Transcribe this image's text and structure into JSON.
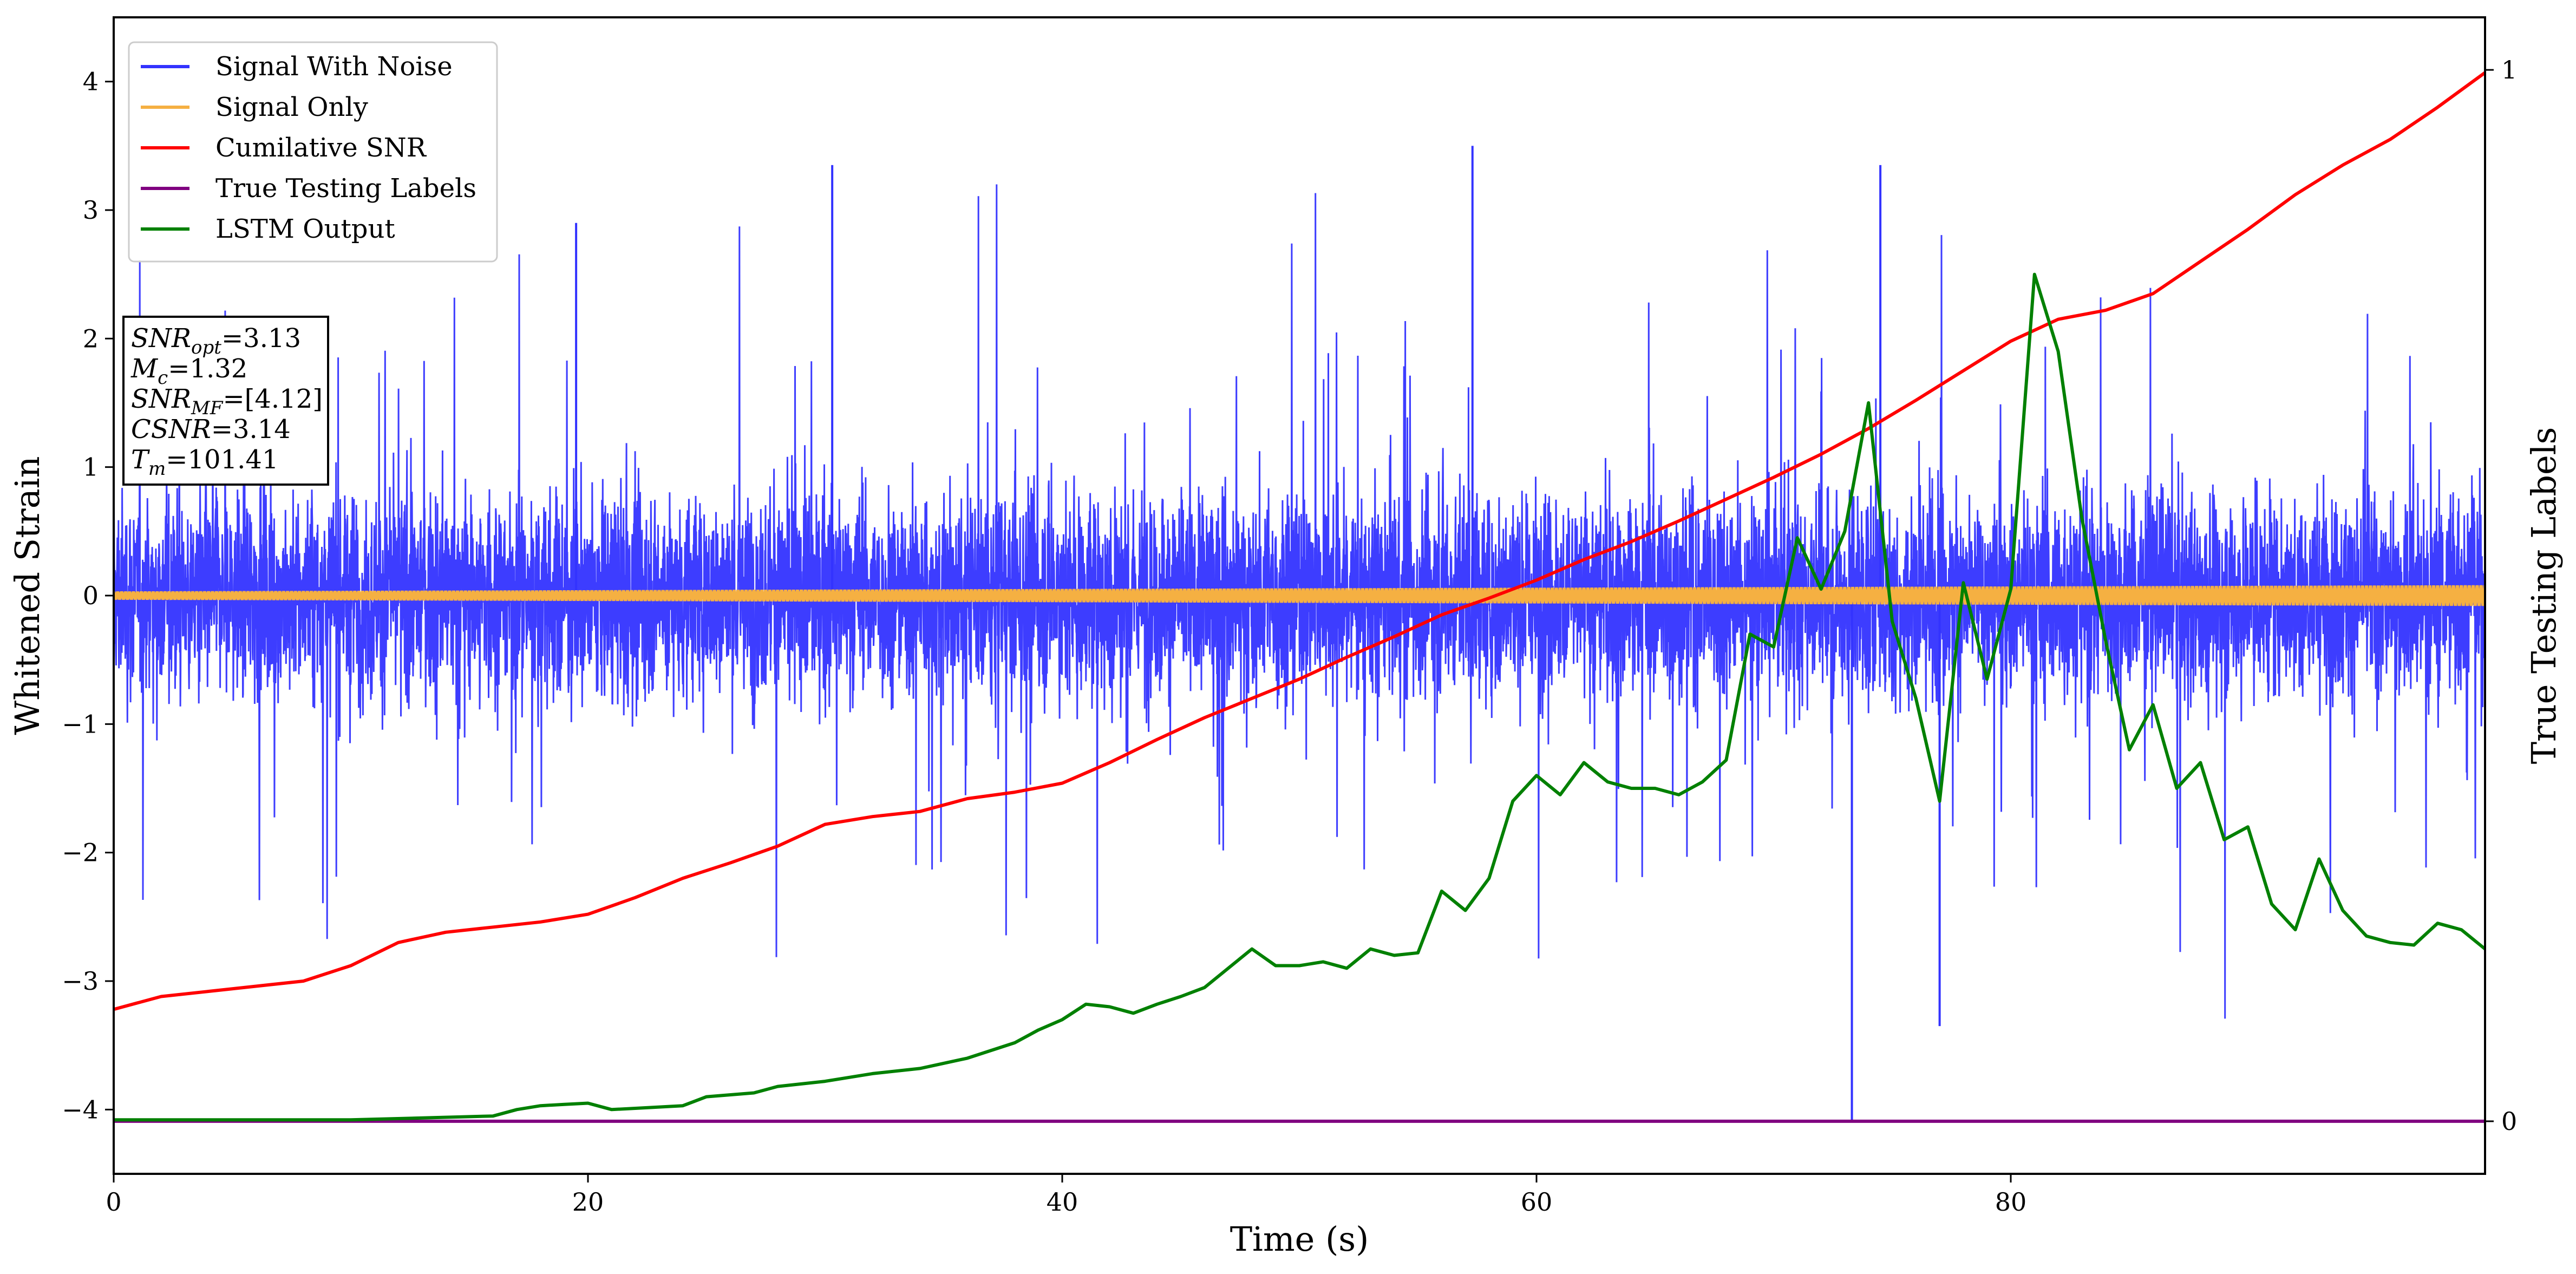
{
  "chart_data": {
    "type": "line",
    "xlabel": "Time (s)",
    "ylabel": "Whitened Strain",
    "y2label": "True Testing Labels",
    "xlim": [
      0,
      100
    ],
    "ylim": [
      -4.5,
      4.5
    ],
    "y2lim": [
      -0.05,
      1.05
    ],
    "xticks": [
      0,
      20,
      40,
      60,
      80
    ],
    "yticks": [
      -4,
      -3,
      -2,
      -1,
      0,
      1,
      2,
      3,
      4
    ],
    "y2ticks": [
      0,
      1
    ],
    "legend": {
      "placement": "top-left",
      "entries": [
        {
          "label": "Signal With Noise",
          "color": "#3333ff"
        },
        {
          "label": "Signal Only",
          "color": "#f5b042"
        },
        {
          "label": "Cumilative SNR",
          "color": "#ff0000"
        },
        {
          "label": "True Testing Labels",
          "color": "#800080"
        },
        {
          "label": "LSTM Output",
          "color": "#008000"
        }
      ]
    },
    "annotation": {
      "lines": [
        {
          "var": "SNR",
          "sub": "opt",
          "value": "=3.13"
        },
        {
          "var": "M",
          "sub": "c",
          "value": "=1.32"
        },
        {
          "var": "SNR",
          "sub": "MF",
          "value": "=[4.12]"
        },
        {
          "var": "CSNR",
          "sub": "",
          "value": "=3.14"
        },
        {
          "var": "T",
          "sub": "m",
          "value": "=101.41"
        }
      ]
    },
    "series": [
      {
        "name": "Signal With Noise",
        "color": "#3333ff",
        "axis": "left",
        "description_range": [
          -4.1,
          3.5
        ],
        "band_core": [
          -1.2,
          1.2
        ],
        "notable_peaks": [
          [
            19.5,
            2.9
          ],
          [
            30.3,
            3.35
          ],
          [
            57.3,
            3.5
          ],
          [
            74.5,
            3.35
          ],
          [
            73.3,
            -4.1
          ],
          [
            77.0,
            -3.35
          ]
        ]
      },
      {
        "name": "Signal Only",
        "color": "#f5b042",
        "axis": "left",
        "amplitude_start": 0.03,
        "amplitude_end": 0.08
      },
      {
        "name": "Cumilative SNR",
        "color": "#ff0000",
        "axis": "left",
        "x": [
          0,
          2,
          4,
          6,
          8,
          10,
          12,
          14,
          16,
          18,
          20,
          22,
          24,
          26,
          28,
          30,
          32,
          34,
          36,
          38,
          40,
          42,
          44,
          46,
          48,
          50,
          52,
          54,
          56,
          58,
          60,
          62,
          64,
          66,
          68,
          70,
          72,
          74,
          76,
          78,
          80,
          82,
          84,
          86,
          88,
          90,
          92,
          94,
          96,
          98,
          100
        ],
        "y": [
          -3.22,
          -3.12,
          -3.08,
          -3.04,
          -3.0,
          -2.88,
          -2.7,
          -2.62,
          -2.58,
          -2.54,
          -2.48,
          -2.35,
          -2.2,
          -2.08,
          -1.95,
          -1.78,
          -1.72,
          -1.68,
          -1.58,
          -1.53,
          -1.46,
          -1.3,
          -1.12,
          -0.95,
          -0.8,
          -0.65,
          -0.48,
          -0.32,
          -0.15,
          -0.02,
          0.12,
          0.28,
          0.42,
          0.58,
          0.75,
          0.92,
          1.1,
          1.3,
          1.52,
          1.75,
          1.98,
          2.15,
          2.22,
          2.35,
          2.6,
          2.85,
          3.12,
          3.35,
          3.55,
          3.8,
          4.07
        ]
      },
      {
        "name": "True Testing Labels",
        "color": "#800080",
        "axis": "right",
        "x": [
          0,
          100
        ],
        "y": [
          0,
          0
        ]
      },
      {
        "name": "LSTM Output",
        "color": "#008000",
        "axis": "left",
        "x": [
          0,
          10,
          16,
          17,
          18,
          19,
          20,
          21,
          22,
          24,
          25,
          27,
          28,
          30,
          32,
          34,
          36,
          38,
          39,
          40,
          41,
          42,
          43,
          44,
          45,
          46,
          47,
          48,
          49,
          50,
          51,
          52,
          53,
          54,
          55,
          56,
          57,
          58,
          59,
          60,
          61,
          62,
          63,
          64,
          65,
          66,
          67,
          68,
          69,
          70,
          71,
          72,
          73,
          74,
          75,
          76,
          77,
          78,
          79,
          80,
          81,
          82,
          83,
          84,
          85,
          86,
          87,
          88,
          89,
          90,
          91,
          92,
          93,
          94,
          95,
          96,
          97,
          98,
          99,
          100
        ],
        "y": [
          -4.08,
          -4.08,
          -4.05,
          -4.0,
          -3.97,
          -3.96,
          -3.95,
          -4.0,
          -3.99,
          -3.97,
          -3.9,
          -3.87,
          -3.82,
          -3.78,
          -3.72,
          -3.68,
          -3.6,
          -3.48,
          -3.38,
          -3.3,
          -3.18,
          -3.2,
          -3.25,
          -3.18,
          -3.12,
          -3.05,
          -2.9,
          -2.75,
          -2.88,
          -2.88,
          -2.85,
          -2.9,
          -2.75,
          -2.8,
          -2.78,
          -2.3,
          -2.45,
          -2.2,
          -1.6,
          -1.4,
          -1.55,
          -1.3,
          -1.45,
          -1.5,
          -1.5,
          -1.55,
          -1.45,
          -1.28,
          -0.3,
          -0.4,
          0.45,
          0.05,
          0.5,
          1.5,
          -0.2,
          -0.8,
          -1.6,
          0.1,
          -0.65,
          0.05,
          2.5,
          1.9,
          0.6,
          -0.35,
          -1.2,
          -0.85,
          -1.5,
          -1.3,
          -1.9,
          -1.8,
          -2.4,
          -2.6,
          -2.05,
          -2.45,
          -2.65,
          -2.7,
          -2.72,
          -2.55,
          -2.6,
          -2.75
        ]
      }
    ]
  }
}
